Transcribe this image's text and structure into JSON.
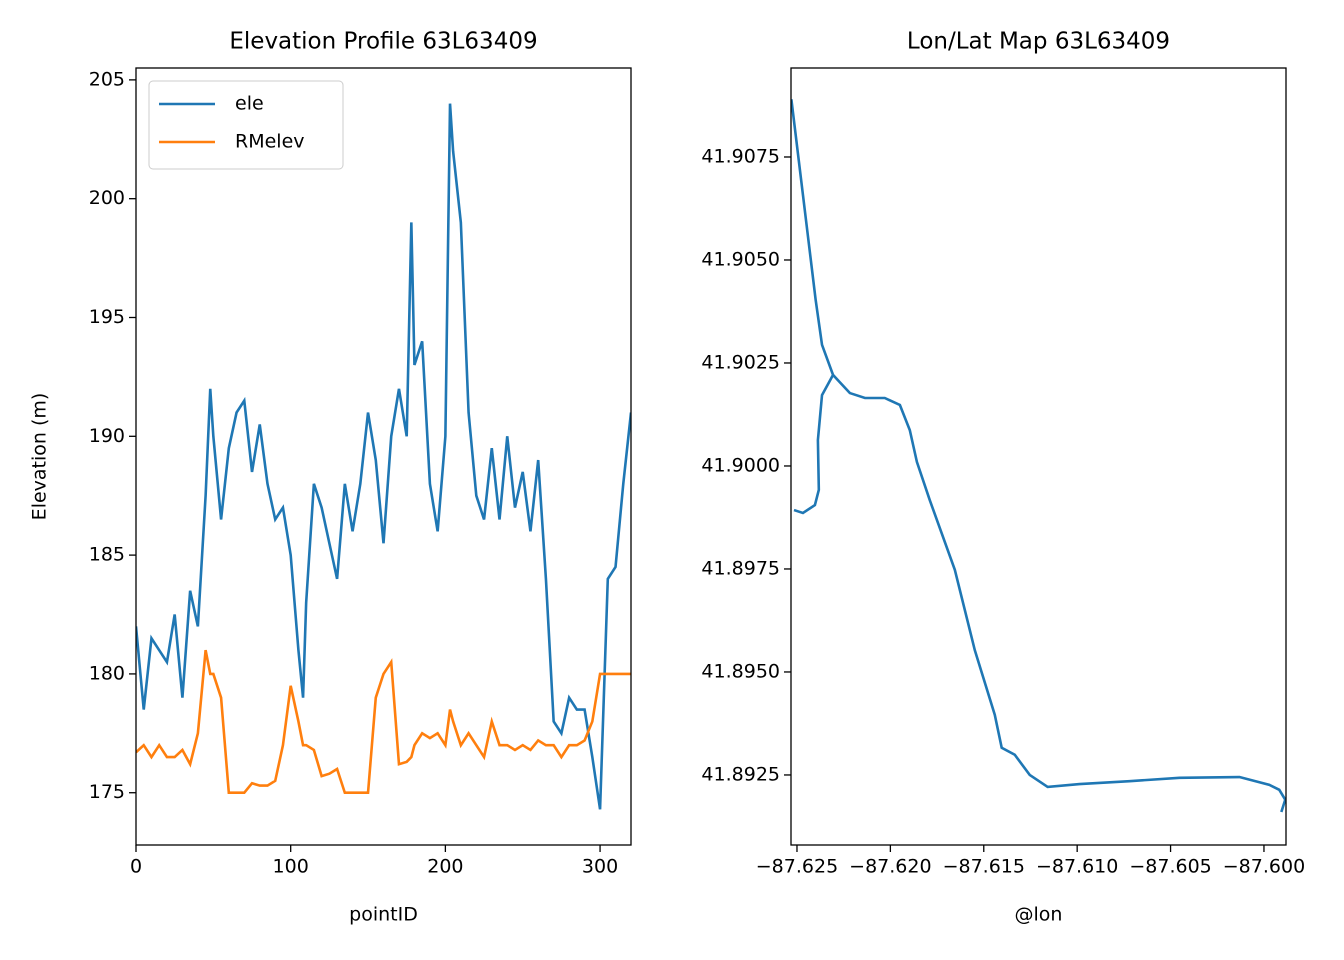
{
  "chart_data": [
    {
      "type": "line",
      "title": "Elevation Profile 63L63409",
      "x_label": "pointID",
      "y_label": "Elevation (m)",
      "xlim": [
        0,
        320
      ],
      "ylim": [
        172.8,
        205.5
      ],
      "xticks": [
        0,
        100,
        200,
        300
      ],
      "yticks": [
        175,
        180,
        185,
        190,
        195,
        200,
        205
      ],
      "legend": "upper left",
      "x": [
        0,
        5,
        10,
        15,
        20,
        25,
        30,
        35,
        40,
        45,
        48,
        50,
        55,
        60,
        65,
        70,
        75,
        80,
        85,
        90,
        95,
        100,
        105,
        108,
        110,
        115,
        120,
        125,
        130,
        135,
        140,
        145,
        150,
        155,
        160,
        165,
        170,
        175,
        178,
        180,
        185,
        190,
        195,
        200,
        203,
        205,
        210,
        215,
        220,
        225,
        230,
        235,
        240,
        245,
        250,
        255,
        260,
        265,
        270,
        275,
        280,
        285,
        290,
        295,
        300,
        305,
        310,
        315,
        320
      ],
      "series": [
        {
          "name": "ele",
          "color": "#1f77b4",
          "values": [
            182,
            178.5,
            181.5,
            181,
            180.5,
            182.5,
            179,
            183.5,
            182,
            187.5,
            192,
            190,
            186.5,
            189.5,
            191,
            191.5,
            188.5,
            190.5,
            188,
            186.5,
            187,
            185,
            181,
            179,
            183,
            188,
            187,
            185.5,
            184,
            188,
            186,
            188,
            191,
            189,
            185.5,
            190,
            192,
            190,
            199,
            193,
            194,
            188,
            186,
            190,
            204,
            202,
            199,
            191,
            187.5,
            186.5,
            189.5,
            186.5,
            190,
            187,
            188.5,
            186,
            189,
            184,
            178,
            177.5,
            179,
            178.5,
            178.5,
            176.5,
            174.3,
            184,
            184.5,
            188,
            191
          ]
        },
        {
          "name": "RMelev",
          "color": "#ff7f0e",
          "values": [
            176.7,
            177,
            176.5,
            177,
            176.5,
            176.5,
            176.8,
            176.2,
            177.5,
            181,
            180,
            180,
            179,
            175,
            175,
            175,
            175.4,
            175.3,
            175.3,
            175.5,
            177,
            179.5,
            178,
            177,
            177,
            176.8,
            175.7,
            175.8,
            176,
            175,
            175,
            175,
            175,
            179,
            180,
            180.5,
            176.2,
            176.3,
            176.5,
            177,
            177.5,
            177.3,
            177.5,
            177,
            178.5,
            178,
            177,
            177.5,
            177,
            176.5,
            178,
            177,
            177,
            176.8,
            177,
            176.8,
            177.2,
            177,
            177,
            176.5,
            177,
            177,
            177.2,
            178,
            180,
            180,
            180,
            180,
            180
          ]
        }
      ]
    },
    {
      "type": "line",
      "title": "Lon/Lat Map 63L63409",
      "x_label": "@lon",
      "xlim": [
        -87.62532,
        -87.59882
      ],
      "ylim": [
        41.8908,
        41.90966
      ],
      "xticks": [
        {
          "value": -87.625,
          "label": "−87.625"
        },
        {
          "value": -87.62,
          "label": "−87.620"
        },
        {
          "value": -87.615,
          "label": "−87.615"
        },
        {
          "value": -87.61,
          "label": "−87.610"
        },
        {
          "value": -87.605,
          "label": "−87.605"
        },
        {
          "value": -87.6,
          "label": "−87.600"
        }
      ],
      "yticks": [
        41.8925,
        {
          "value": 41.895,
          "label": "41.8950"
        },
        41.8975,
        {
          "value": 41.9,
          "label": "41.9000"
        },
        41.9025,
        {
          "value": 41.905,
          "label": "41.9050"
        },
        41.9075
      ],
      "x": [
        -87.62516,
        -87.62468,
        -87.62404,
        -87.62383,
        -87.62388,
        -87.62366,
        -87.62307,
        -87.62366,
        -87.624,
        -87.6253,
        -87.624,
        -87.62366,
        -87.62307,
        -87.62217,
        -87.62136,
        -87.6203,
        -87.61949,
        -87.61896,
        -87.61858,
        -87.61789,
        -87.61655,
        -87.61548,
        -87.61441,
        -87.61404,
        -87.61334,
        -87.61254,
        -87.61158,
        -87.60987,
        -87.6072,
        -87.60452,
        -87.60131,
        -87.59971,
        -87.59918,
        -87.59886,
        -87.59907
      ],
      "series": [
        {
          "color": "#1f77b4",
          "values": [
            41.89893,
            41.89886,
            41.89905,
            41.89942,
            41.90063,
            41.90172,
            41.90221,
            41.90294,
            41.90403,
            41.9089,
            41.90403,
            41.90294,
            41.90221,
            41.90177,
            41.90165,
            41.90165,
            41.90148,
            41.90087,
            41.9001,
            41.89917,
            41.89748,
            41.89553,
            41.89396,
            41.89316,
            41.89299,
            41.8925,
            41.89221,
            41.89228,
            41.89235,
            41.89243,
            41.89245,
            41.89226,
            41.89214,
            41.8919,
            41.8916
          ]
        }
      ]
    }
  ]
}
